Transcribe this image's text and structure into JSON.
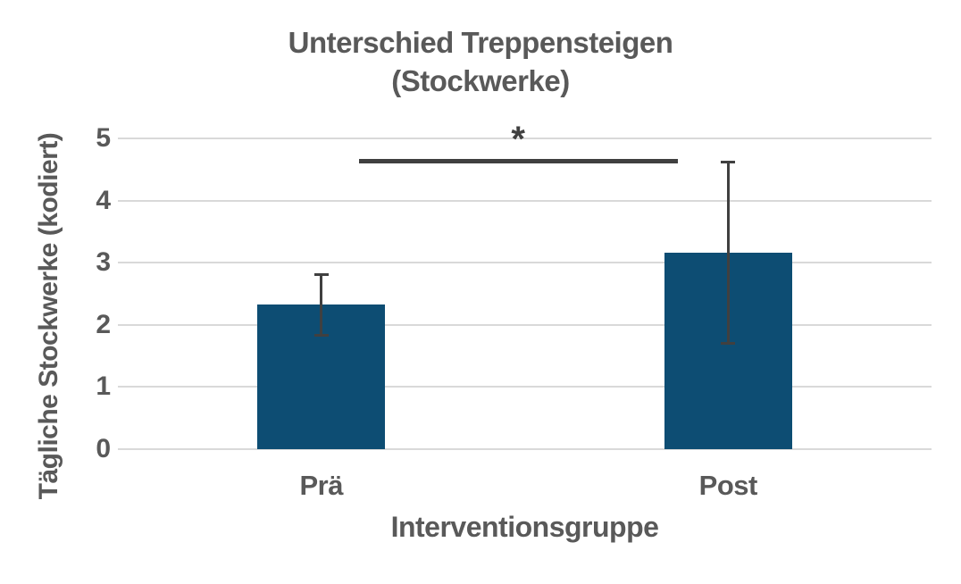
{
  "chart_data": {
    "type": "bar",
    "title": "Unterschied Treppensteigen (Stockwerke)",
    "title_lines": [
      "Unterschied Treppensteigen",
      "(Stockwerke)"
    ],
    "xlabel": "Interventionsgruppe",
    "ylabel": "Tägliche Stockwerke (kodiert)",
    "categories": [
      "Prä",
      "Post"
    ],
    "values": [
      2.33,
      3.16
    ],
    "error_bars": [
      {
        "low": 1.82,
        "high": 2.82
      },
      {
        "low": 1.7,
        "high": 4.63
      }
    ],
    "ylim": [
      0,
      5
    ],
    "yticks": [
      0,
      1,
      2,
      3,
      4,
      5
    ],
    "grid": "horizontal",
    "legend": "none",
    "significance": {
      "label": "*",
      "y_value": 4.67,
      "x_from_frac": 0.296,
      "x_to_frac": 0.688
    },
    "colors": {
      "bar": "#0d4d73",
      "text": "#595959",
      "annotation": "#404040",
      "gridline": "#d9d9d9",
      "background": "#ffffff"
    }
  }
}
